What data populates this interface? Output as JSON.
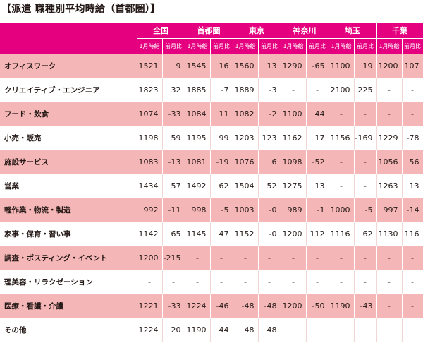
{
  "title": "【派遣 職種別平均時給（首都圏）】",
  "columns": {
    "regions": [
      "全国",
      "首都圏",
      "東京",
      "神奈川",
      "埼玉",
      "千葉"
    ],
    "sub_wage": "1月時給",
    "sub_change": "前月比"
  },
  "rows": [
    {
      "category": "オフィスワーク",
      "cells": [
        "1521",
        "9",
        "1545",
        "16",
        "1560",
        "13",
        "1290",
        "-65",
        "1100",
        "19",
        "1200",
        "107"
      ]
    },
    {
      "category": "クリエイティブ・エンジニア",
      "cells": [
        "1823",
        "32",
        "1885",
        "-7",
        "1889",
        "-3",
        "-",
        "-",
        "2100",
        "225",
        "-",
        "-"
      ]
    },
    {
      "category": "フード・飲食",
      "cells": [
        "1074",
        "-33",
        "1084",
        "11",
        "1082",
        "-2",
        "1100",
        "44",
        "-",
        "-",
        "-",
        "-"
      ]
    },
    {
      "category": "小売・販売",
      "cells": [
        "1198",
        "59",
        "1195",
        "99",
        "1203",
        "123",
        "1162",
        "17",
        "1156",
        "-169",
        "1229",
        "-78"
      ]
    },
    {
      "category": "施設サービス",
      "cells": [
        "1083",
        "-13",
        "1081",
        "-19",
        "1076",
        "6",
        "1098",
        "-52",
        "-",
        "-",
        "1056",
        "56"
      ]
    },
    {
      "category": "営業",
      "cells": [
        "1434",
        "57",
        "1492",
        "62",
        "1504",
        "52",
        "1275",
        "13",
        "-",
        "-",
        "1263",
        "13"
      ]
    },
    {
      "category": "軽作業・物流・製造",
      "cells": [
        "992",
        "-11",
        "998",
        "-5",
        "1003",
        "-0",
        "989",
        "-1",
        "1000",
        "-5",
        "997",
        "-14"
      ]
    },
    {
      "category": "家事・保育・習い事",
      "cells": [
        "1142",
        "65",
        "1145",
        "47",
        "1152",
        "-0",
        "1200",
        "112",
        "1116",
        "62",
        "1130",
        "116"
      ]
    },
    {
      "category": "調査・ポスティング・イベント",
      "cells": [
        "1200",
        "-215",
        "-",
        "-",
        "-",
        "-",
        "-",
        "-",
        "-",
        "-",
        "-",
        "-"
      ]
    },
    {
      "category": "理美容・リラクゼーション",
      "cells": [
        "-",
        "-",
        "-",
        "-",
        "-",
        "-",
        "-",
        "-",
        "-",
        "-",
        "-",
        "-"
      ]
    },
    {
      "category": "医療・看護・介護",
      "cells": [
        "1221",
        "-33",
        "1224",
        "-46",
        "-48",
        "-48",
        "1200",
        "-50",
        "1190",
        "-43",
        "-",
        "-"
      ]
    },
    {
      "category": "その他",
      "cells": [
        "1224",
        "20",
        "1190",
        "44",
        "48",
        "48",
        "",
        "",
        "",
        "",
        "",
        ""
      ]
    }
  ]
}
